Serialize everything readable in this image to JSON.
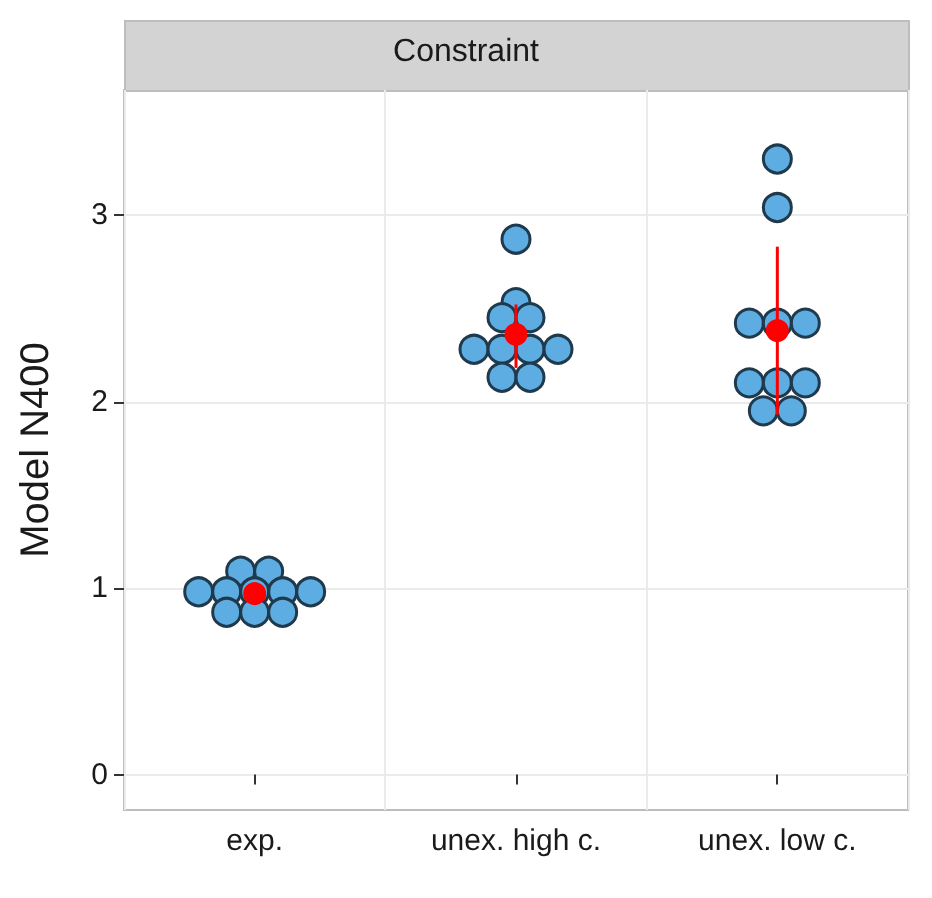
{
  "chart_data": {
    "type": "scatter",
    "title": "Constraint",
    "ylabel": "Model N400",
    "categories": [
      "exp.",
      "unex. high c.",
      "unex. low c."
    ],
    "ylim": [
      -0.19,
      3.67
    ],
    "yticks": [
      0,
      1,
      2,
      3
    ],
    "grid": true,
    "marker": "circle",
    "series": [
      {
        "color": "#5dade2",
        "x": [
          "exp.",
          "exp.",
          "exp.",
          "exp.",
          "exp.",
          "exp.",
          "exp.",
          "exp.",
          "exp.",
          "exp.",
          "unex. high c.",
          "unex. high c.",
          "unex. high c.",
          "unex. high c.",
          "unex. high c.",
          "unex. high c.",
          "unex. high c.",
          "unex. high c.",
          "unex. high c.",
          "unex. high c.",
          "unex. low c.",
          "unex. low c.",
          "unex. low c.",
          "unex. low c.",
          "unex. low c.",
          "unex. low c.",
          "unex. low c.",
          "unex. low c.",
          "unex. low c.",
          "unex. low c."
        ],
        "values": [
          1.09,
          1.09,
          0.98,
          0.98,
          0.98,
          0.98,
          0.98,
          0.87,
          0.87,
          0.87,
          2.87,
          2.53,
          2.45,
          2.45,
          2.28,
          2.28,
          2.28,
          2.28,
          2.13,
          2.13,
          3.3,
          3.04,
          2.42,
          2.42,
          2.42,
          2.1,
          2.1,
          2.1,
          1.95,
          1.95
        ]
      },
      {
        "color": "#ff0000",
        "x": [
          "exp.",
          "unex. high c.",
          "unex. low c."
        ],
        "values": [
          0.97,
          2.36,
          2.38
        ],
        "errors": [
          [
            0.94,
            1.0
          ],
          [
            2.18,
            2.52
          ],
          [
            1.93,
            2.83
          ]
        ]
      }
    ]
  }
}
